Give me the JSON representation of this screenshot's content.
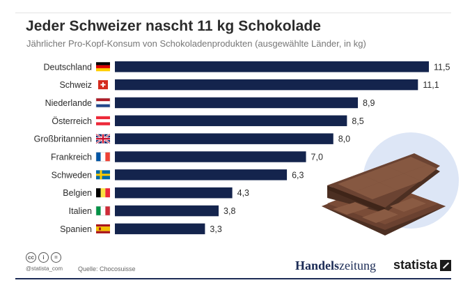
{
  "chart_data": {
    "type": "bar",
    "orientation": "horizontal",
    "title": "Jeder Schweizer nascht 11 kg Schokolade",
    "subtitle": "Jährlicher Pro-Kopf-Konsum von Schokoladenprodukten (ausgewählte Länder, in kg)",
    "categories": [
      "Deutschland",
      "Schweiz",
      "Niederlande",
      "Österreich",
      "Großbritannien",
      "Frankreich",
      "Schweden",
      "Belgien",
      "Italien",
      "Spanien"
    ],
    "values": [
      11.5,
      11.1,
      8.9,
      8.5,
      8.0,
      7.0,
      6.3,
      4.3,
      3.8,
      3.3
    ],
    "value_labels": [
      "11,5",
      "11,1",
      "8,9",
      "8,5",
      "8,0",
      "7,0",
      "6,3",
      "4,3",
      "3,8",
      "3,3"
    ],
    "xlim": [
      0,
      11.5
    ],
    "grid": false,
    "bar_color": "#14244d"
  },
  "flags": [
    "germany-flag",
    "switzerland-flag",
    "netherlands-flag",
    "austria-flag",
    "uk-flag",
    "france-flag",
    "sweden-flag",
    "belgium-flag",
    "italy-flag",
    "spain-flag"
  ],
  "illustration": "chocolate-bar-illustration",
  "footer": {
    "license_icons": [
      "cc",
      "i",
      "="
    ],
    "handle": "@statista_com",
    "source": "Quelle: Chocosuisse",
    "publisher_bold": "Handels",
    "publisher_rest": "zeitung",
    "brand": "statista"
  },
  "colors": {
    "bar": "#14244d",
    "text": "#2b2b2b",
    "publisher": "#1b2b55",
    "circle": "#dde6f6",
    "chocolate": "#5e3a2a"
  }
}
